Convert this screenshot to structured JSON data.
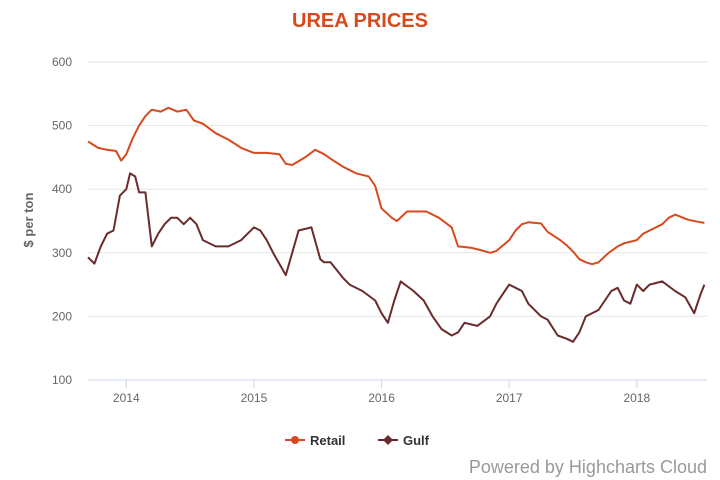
{
  "chart_data": {
    "type": "line",
    "title": "UREA PRICES",
    "xlabel": "",
    "ylabel": "$ per ton",
    "ylim": [
      100,
      600
    ],
    "xlim": [
      2013.7,
      2018.55
    ],
    "y_ticks": [
      "100",
      "200",
      "300",
      "400",
      "500",
      "600"
    ],
    "x_ticks": [
      "2014",
      "2015",
      "2016",
      "2017",
      "2018"
    ],
    "grid": true,
    "legend": "bottom-center",
    "series": [
      {
        "name": "Retail",
        "color": "#d84a1e",
        "x": [
          2013.7,
          2013.78,
          2013.85,
          2013.92,
          2013.96,
          2014.0,
          2014.05,
          2014.1,
          2014.15,
          2014.2,
          2014.27,
          2014.33,
          2014.4,
          2014.47,
          2014.53,
          2014.6,
          2014.7,
          2014.8,
          2014.9,
          2015.0,
          2015.1,
          2015.2,
          2015.25,
          2015.3,
          2015.4,
          2015.48,
          2015.55,
          2015.6,
          2015.7,
          2015.8,
          2015.9,
          2015.95,
          2016.0,
          2016.08,
          2016.12,
          2016.2,
          2016.3,
          2016.35,
          2016.45,
          2016.55,
          2016.6,
          2016.7,
          2016.8,
          2016.85,
          2016.9,
          2017.0,
          2017.05,
          2017.1,
          2017.15,
          2017.25,
          2017.3,
          2017.4,
          2017.45,
          2017.5,
          2017.55,
          2017.6,
          2017.65,
          2017.7,
          2017.78,
          2017.85,
          2017.9,
          2018.0,
          2018.05,
          2018.1,
          2018.15,
          2018.2,
          2018.25,
          2018.3,
          2018.4,
          2018.5,
          2018.53
        ],
        "y": [
          475,
          465,
          462,
          460,
          445,
          455,
          480,
          500,
          515,
          525,
          522,
          528,
          522,
          525,
          508,
          503,
          488,
          478,
          465,
          457,
          457,
          455,
          440,
          438,
          450,
          462,
          455,
          448,
          435,
          425,
          420,
          405,
          370,
          355,
          350,
          365,
          365,
          365,
          355,
          340,
          310,
          308,
          303,
          300,
          303,
          320,
          335,
          345,
          348,
          346,
          333,
          320,
          312,
          302,
          290,
          285,
          282,
          285,
          300,
          310,
          315,
          320,
          330,
          335,
          340,
          345,
          355,
          360,
          352,
          348,
          347
        ]
      },
      {
        "name": "Gulf",
        "color": "#6b2a2c",
        "x": [
          2013.7,
          2013.75,
          2013.8,
          2013.85,
          2013.9,
          2013.95,
          2014.0,
          2014.03,
          2014.07,
          2014.1,
          2014.15,
          2014.2,
          2014.25,
          2014.3,
          2014.35,
          2014.4,
          2014.45,
          2014.5,
          2014.55,
          2014.6,
          2014.7,
          2014.8,
          2014.9,
          2015.0,
          2015.05,
          2015.1,
          2015.15,
          2015.25,
          2015.3,
          2015.35,
          2015.45,
          2015.52,
          2015.55,
          2015.6,
          2015.7,
          2015.75,
          2015.85,
          2015.95,
          2016.0,
          2016.05,
          2016.1,
          2016.15,
          2016.25,
          2016.33,
          2016.4,
          2016.47,
          2016.55,
          2016.6,
          2016.65,
          2016.75,
          2016.85,
          2016.9,
          2016.95,
          2017.0,
          2017.05,
          2017.1,
          2017.15,
          2017.25,
          2017.3,
          2017.38,
          2017.45,
          2017.5,
          2017.55,
          2017.6,
          2017.7,
          2017.8,
          2017.85,
          2017.9,
          2017.95,
          2018.0,
          2018.05,
          2018.1,
          2018.2,
          2018.3,
          2018.38,
          2018.45,
          2018.5,
          2018.53
        ],
        "y": [
          293,
          283,
          310,
          330,
          335,
          390,
          400,
          425,
          420,
          395,
          395,
          310,
          330,
          345,
          355,
          355,
          345,
          355,
          345,
          320,
          310,
          310,
          320,
          340,
          335,
          320,
          300,
          265,
          300,
          335,
          340,
          290,
          285,
          285,
          260,
          250,
          240,
          225,
          205,
          190,
          225,
          255,
          240,
          225,
          200,
          180,
          170,
          175,
          190,
          185,
          200,
          220,
          235,
          250,
          245,
          240,
          220,
          200,
          195,
          170,
          165,
          160,
          175,
          200,
          210,
          240,
          245,
          225,
          220,
          250,
          240,
          250,
          255,
          240,
          230,
          205,
          235,
          250
        ]
      }
    ]
  },
  "credits": "Powered by Highcharts Cloud"
}
